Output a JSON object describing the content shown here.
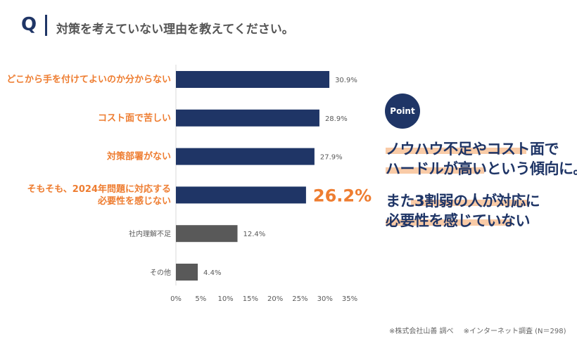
{
  "header": {
    "q_label": "Q",
    "question": "対策を考えていない理由を教えてください。"
  },
  "chart_data": {
    "type": "bar",
    "orientation": "horizontal",
    "categories": [
      "どこから手を付けてよいのか分からない",
      "コスト面で苦しい",
      "対策部署がない",
      "そもそも、2024年問題に対応する\n必要性を感じない",
      "社内理解不足",
      "その他"
    ],
    "values": [
      30.9,
      28.9,
      27.9,
      26.2,
      12.4,
      4.4
    ],
    "data_labels": [
      "30.9%",
      "28.9%",
      "27.9%",
      "26.2%",
      "12.4%",
      "4.4%"
    ],
    "highlight_index": 3,
    "xlim": [
      0,
      35
    ],
    "xticks": [
      "0%",
      "5%",
      "10%",
      "15%",
      "20%",
      "25%",
      "30%",
      "35%"
    ],
    "grid": false,
    "colors": {
      "primary_bar": "#1f3566",
      "secondary_bar": "#595959",
      "primary_label": "#ee7d31",
      "secondary_label": "#595959",
      "highlight_value": "#ee7d31"
    },
    "primary_count": 4
  },
  "point": {
    "badge": "Point",
    "lines": [
      "ノウハウ不足やコスト面で",
      "ハードルが高いという傾向に。",
      "また3割弱の人が対応に",
      "必要性を感じていない"
    ],
    "highlight_color": "#f9cba7"
  },
  "footnote": {
    "source": "※株式会社山善 調べ",
    "survey": "※インターネット調査 (N＝298)"
  }
}
